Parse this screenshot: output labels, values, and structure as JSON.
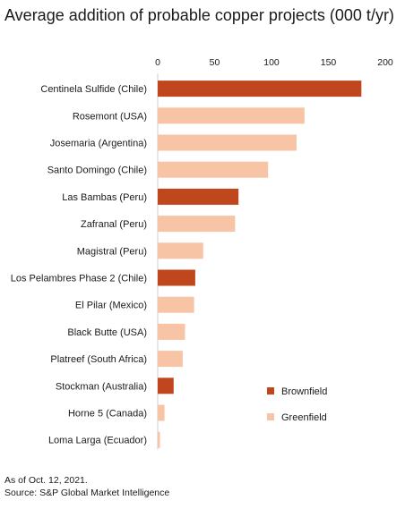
{
  "chart_data": {
    "type": "bar",
    "orientation": "horizontal",
    "title": "Average addition of probable copper projects (000 t/yr)",
    "xlim": [
      0,
      200
    ],
    "xticks": [
      0,
      50,
      100,
      150,
      200
    ],
    "categories": [
      "Centinela Sulfide (Chile)",
      "Rosemont (USA)",
      "Josemaria (Argentina)",
      "Santo Domingo (Chile)",
      "Las Bambas (Peru)",
      "Zafranal (Peru)",
      "Magistral (Peru)",
      "Los Pelambres Phase 2 (Chile)",
      "El Pilar (Mexico)",
      "Black Butte (USA)",
      "Platreef (South Africa)",
      "Stockman (Australia)",
      "Horne 5 (Canada)",
      "Loma Larga (Ecuador)"
    ],
    "values": [
      179,
      129,
      122,
      97,
      71,
      68,
      40,
      33,
      32,
      24,
      22,
      14,
      6,
      2
    ],
    "types": [
      "Brownfield",
      "Greenfield",
      "Greenfield",
      "Greenfield",
      "Brownfield",
      "Greenfield",
      "Greenfield",
      "Brownfield",
      "Greenfield",
      "Greenfield",
      "Greenfield",
      "Brownfield",
      "Greenfield",
      "Greenfield"
    ],
    "legend": {
      "placement": "bottom-right",
      "entries": [
        {
          "name": "Brownfield",
          "color": "#c0461d"
        },
        {
          "name": "Greenfield",
          "color": "#f8c4a6"
        }
      ]
    },
    "grid": false
  },
  "footnote": {
    "line1": "As of Oct. 12, 2021.",
    "line2": "Source: S&P Global Market Intelligence"
  }
}
